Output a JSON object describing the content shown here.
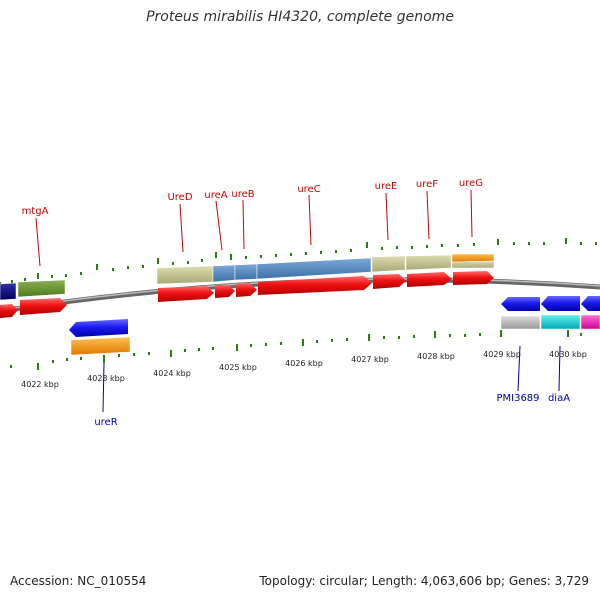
{
  "title": "Proteus mirabilis HI4320, complete genome",
  "footer": {
    "accession": "Accession: NC_010554",
    "topology": "Topology: circular; Length: 4,063,606 bp; Genes: 3,729"
  },
  "colors": {
    "label_top": "#cc0000",
    "label_bottom": "#0000aa",
    "tick": "#2e7d0c",
    "backbone": "#888888",
    "cds_forward": "#ee1111",
    "cds_reverse": "#1a1aee"
  },
  "scale_labels": [
    "4022 kbp",
    "4023 kbp",
    "4024 kbp",
    "4025 kbp",
    "4026 kbp",
    "4027 kbp",
    "4028 kbp",
    "4029 kbp",
    "4030 kbp"
  ],
  "top_labels": [
    "mtgA",
    "UreD",
    "ureA",
    "ureB",
    "ureC",
    "ureE",
    "ureF",
    "ureG"
  ],
  "bottom_labels": [
    "ureR",
    "PMI3689",
    "diaA"
  ]
}
